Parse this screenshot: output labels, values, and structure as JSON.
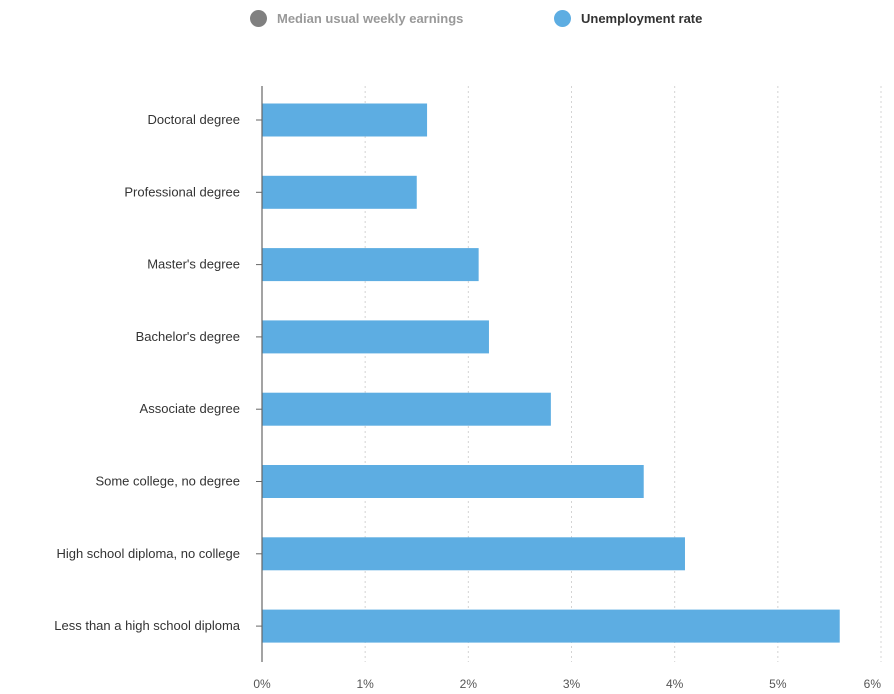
{
  "legend": {
    "items": [
      {
        "label": "Median usual weekly earnings",
        "color": "#808080",
        "active": false
      },
      {
        "label": "Unemployment rate",
        "color": "#5dade2",
        "active": true
      }
    ]
  },
  "chart_data": {
    "type": "bar",
    "orientation": "horizontal",
    "categories": [
      "Doctoral degree",
      "Professional degree",
      "Master's degree",
      "Bachelor's degree",
      "Associate degree",
      "Some college, no degree",
      "High school diploma, no college",
      "Less than a high school diploma"
    ],
    "series": [
      {
        "name": "Unemployment rate",
        "values": [
          1.6,
          1.5,
          2.1,
          2.2,
          2.8,
          3.7,
          4.1,
          5.6
        ],
        "color": "#5dade2"
      }
    ],
    "xlim": [
      0,
      6
    ],
    "xticks": [
      0,
      1,
      2,
      3,
      4,
      5,
      6
    ],
    "xtick_labels": [
      "0%",
      "1%",
      "2%",
      "3%",
      "4%",
      "5%",
      "6%"
    ],
    "grid": "vertical-dotted",
    "legend_position": "top"
  }
}
